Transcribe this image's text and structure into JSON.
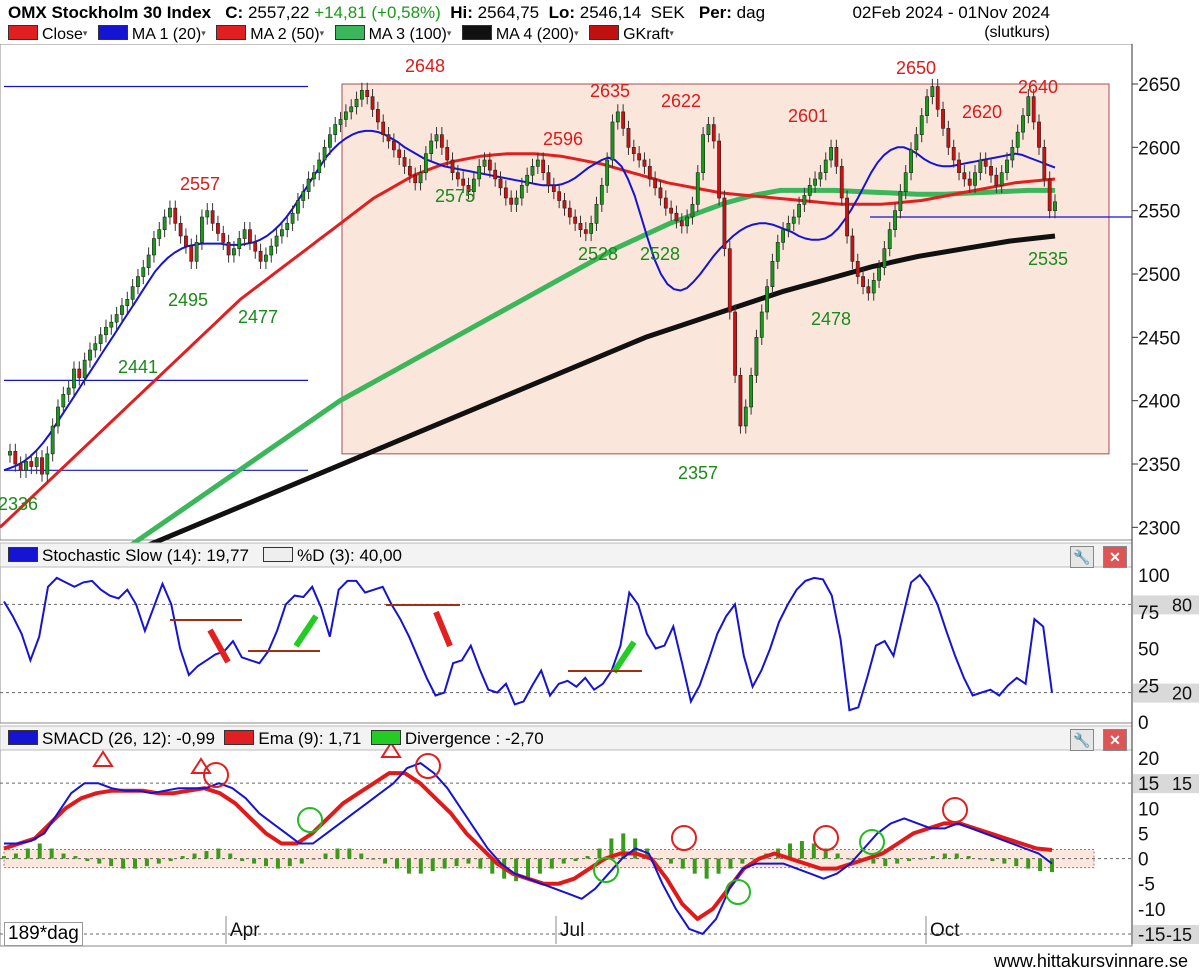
{
  "header": {
    "name": "OMX Stockholm 30 Index",
    "close_label": "C:",
    "close_value": "2557,22",
    "change": "+14,81 (+0,58%)",
    "hi_label": "Hi:",
    "hi_value": "2564,75",
    "lo_label": "Lo:",
    "lo_value": "2546,14",
    "currency": "SEK",
    "period_label": "Per:",
    "period_value": "dag",
    "date_range": "02Feb 2024 - 01Nov 2024",
    "price_mode": "(slutkurs)"
  },
  "legend": [
    {
      "label": "Close",
      "color": "#e02020"
    },
    {
      "label": "MA 1 (20)",
      "color": "#1414d2"
    },
    {
      "label": "MA 2 (50)",
      "color": "#e02020"
    },
    {
      "label": "MA 3 (100)",
      "color": "#3cb65a"
    },
    {
      "label": "MA 4 (200)",
      "color": "#111111"
    },
    {
      "label": "GKraft",
      "color": "#c01010"
    }
  ],
  "stoch_header": {
    "k": "Stochastic Slow (14): 19,77",
    "d": "%D (3): 40,00"
  },
  "macd_header": {
    "macd": "SMACD (26, 12): -0,99",
    "ema": "Ema (9): 1,71",
    "div": "Divergence : -2,70"
  },
  "footer": {
    "website": "www.hittakursvinnare.se",
    "interval": "189*dag"
  },
  "colors": {
    "up": "#1a9a1a",
    "down": "#d01010",
    "ma20": "#1414d2",
    "ma50": "#e02020",
    "ma100": "#3cb65a",
    "ma200": "#111111",
    "box": "#fbe6dc"
  },
  "chart_data": [
    {
      "type": "candlestick",
      "title": "OMX Stockholm 30 Index",
      "x_labels": [
        "Apr",
        "Jul",
        "Oct"
      ],
      "y_ticks": [
        2300,
        2350,
        2400,
        2450,
        2500,
        2550,
        2600,
        2650
      ],
      "ylim": [
        2290,
        2680
      ],
      "grid": false,
      "close": [
        2360,
        2350,
        2345,
        2352,
        2348,
        2355,
        2342,
        2358,
        2380,
        2395,
        2405,
        2410,
        2425,
        2418,
        2432,
        2440,
        2445,
        2452,
        2458,
        2462,
        2468,
        2475,
        2480,
        2490,
        2498,
        2505,
        2515,
        2528,
        2535,
        2545,
        2552,
        2540,
        2530,
        2522,
        2510,
        2525,
        2545,
        2550,
        2540,
        2532,
        2525,
        2515,
        2520,
        2528,
        2535,
        2525,
        2518,
        2510,
        2515,
        2522,
        2530,
        2535,
        2540,
        2548,
        2558,
        2565,
        2575,
        2580,
        2590,
        2600,
        2610,
        2618,
        2622,
        2628,
        2632,
        2638,
        2645,
        2640,
        2630,
        2620,
        2610,
        2605,
        2598,
        2592,
        2585,
        2578,
        2572,
        2580,
        2595,
        2605,
        2610,
        2600,
        2590,
        2580,
        2575,
        2570,
        2565,
        2575,
        2585,
        2590,
        2582,
        2575,
        2568,
        2560,
        2555,
        2560,
        2570,
        2578,
        2585,
        2590,
        2580,
        2570,
        2565,
        2558,
        2552,
        2545,
        2540,
        2535,
        2532,
        2540,
        2555,
        2570,
        2590,
        2620,
        2628,
        2615,
        2600,
        2595,
        2590,
        2585,
        2575,
        2568,
        2560,
        2552,
        2548,
        2542,
        2538,
        2545,
        2555,
        2580,
        2610,
        2618,
        2605,
        2560,
        2520,
        2470,
        2420,
        2380,
        2395,
        2420,
        2450,
        2470,
        2490,
        2510,
        2525,
        2535,
        2540,
        2545,
        2555,
        2562,
        2570,
        2575,
        2580,
        2590,
        2600,
        2585,
        2560,
        2530,
        2510,
        2498,
        2490,
        2485,
        2495,
        2505,
        2520,
        2535,
        2550,
        2565,
        2580,
        2598,
        2610,
        2625,
        2640,
        2648,
        2630,
        2615,
        2600,
        2590,
        2580,
        2575,
        2570,
        2580,
        2590,
        2585,
        2578,
        2570,
        2580,
        2590,
        2600,
        2612,
        2625,
        2640,
        2620,
        2600,
        2575,
        2550,
        2557
      ],
      "annotations_high": [
        2557,
        2648,
        2635,
        2622,
        2596,
        2601,
        2650,
        2620,
        2640
      ],
      "annotations_low": [
        2336,
        2441,
        2495,
        2477,
        2575,
        2528,
        2528,
        2357,
        2478,
        2535
      ],
      "series": [
        {
          "name": "MA 1 (20)",
          "values": [
            2345,
            2347,
            2349,
            2352,
            2356,
            2361,
            2367,
            2374,
            2382,
            2390,
            2398,
            2406,
            2414,
            2422,
            2430,
            2438,
            2446,
            2454,
            2462,
            2470,
            2478,
            2486,
            2494,
            2502,
            2508,
            2513,
            2517,
            2520,
            2522,
            2523,
            2524,
            2524,
            2524,
            2524,
            2523,
            2523,
            2523,
            2524,
            2525,
            2527,
            2530,
            2534,
            2539,
            2545,
            2552,
            2560,
            2568,
            2576,
            2584,
            2592,
            2598,
            2603,
            2607,
            2610,
            2612,
            2613,
            2613,
            2612,
            2610,
            2607,
            2604,
            2600,
            2597,
            2594,
            2591,
            2589,
            2587,
            2585,
            2584,
            2583,
            2582,
            2581,
            2580,
            2579,
            2578,
            2577,
            2576,
            2575,
            2574,
            2573,
            2572,
            2571,
            2570,
            2570,
            2570,
            2571,
            2573,
            2576,
            2580,
            2584,
            2587,
            2590,
            2592,
            2590,
            2585,
            2575,
            2562,
            2545,
            2528,
            2512,
            2500,
            2492,
            2488,
            2487,
            2489,
            2494,
            2500,
            2507,
            2514,
            2520,
            2525,
            2530,
            2534,
            2537,
            2539,
            2540,
            2540,
            2539,
            2537,
            2535,
            2533,
            2530,
            2528,
            2527,
            2527,
            2528,
            2531,
            2536,
            2543,
            2551,
            2560,
            2570,
            2580,
            2588,
            2594,
            2598,
            2600,
            2600,
            2598,
            2595,
            2591,
            2588,
            2586,
            2585,
            2585,
            2586,
            2587,
            2588,
            2589,
            2590,
            2591,
            2592,
            2593,
            2594,
            2595,
            2594,
            2592,
            2590,
            2588,
            2586,
            2584
          ]
        },
        {
          "name": "MA 2 (50)",
          "values": [
            2300,
            2310,
            2320,
            2330,
            2340,
            2350,
            2360,
            2370,
            2380,
            2390,
            2400,
            2410,
            2420,
            2430,
            2440,
            2450,
            2460,
            2470,
            2480,
            2488,
            2496,
            2504,
            2512,
            2520,
            2528,
            2536,
            2544,
            2552,
            2560,
            2566,
            2572,
            2578,
            2582,
            2586,
            2589,
            2591,
            2593,
            2594,
            2595,
            2595,
            2595,
            2594,
            2593,
            2591,
            2589,
            2587,
            2584,
            2581,
            2578,
            2575,
            2572,
            2570,
            2568,
            2566,
            2564,
            2563,
            2562,
            2561,
            2560,
            2559,
            2558,
            2557,
            2556,
            2555,
            2555,
            2555,
            2555,
            2556,
            2557,
            2558,
            2560,
            2562,
            2564,
            2566,
            2568,
            2570,
            2572,
            2573,
            2574,
            2575
          ]
        },
        {
          "name": "MA 3 (100)",
          "values": [
            2280,
            2295,
            2310,
            2325,
            2340,
            2355,
            2370,
            2385,
            2400,
            2412,
            2424,
            2436,
            2448,
            2460,
            2472,
            2484,
            2496,
            2508,
            2520,
            2530,
            2540,
            2548,
            2556,
            2562,
            2566,
            2566,
            2566,
            2565,
            2564,
            2563,
            2563,
            2564,
            2565,
            2566,
            2566
          ]
        },
        {
          "name": "MA 4 (200)",
          "values": [
            2270,
            2285,
            2300,
            2315,
            2330,
            2345,
            2360,
            2375,
            2390,
            2405,
            2420,
            2435,
            2450,
            2462,
            2474,
            2486,
            2496,
            2506,
            2514,
            2520,
            2526,
            2530
          ]
        }
      ]
    },
    {
      "type": "line",
      "title": "Stochastic Slow (14)",
      "y_ticks": [
        0,
        25,
        50,
        75,
        100
      ],
      "ylim": [
        0,
        100
      ],
      "levels": [
        20,
        80
      ],
      "series": [
        {
          "name": "Stochastic Slow (14)",
          "values": [
            82,
            72,
            60,
            42,
            58,
            92,
            98,
            95,
            92,
            95,
            96,
            90,
            86,
            84,
            90,
            80,
            62,
            78,
            94,
            80,
            50,
            32,
            38,
            42,
            46,
            48,
            55,
            44,
            42,
            40,
            48,
            62,
            80,
            86,
            85,
            92,
            78,
            58,
            90,
            96,
            96,
            88,
            90,
            92,
            80,
            70,
            58,
            44,
            30,
            18,
            20,
            40,
            42,
            52,
            36,
            22,
            20,
            26,
            12,
            14,
            25,
            35,
            18,
            26,
            28,
            24,
            30,
            22,
            26,
            35,
            52,
            88,
            80,
            60,
            50,
            52,
            65,
            40,
            14,
            25,
            42,
            60,
            72,
            80,
            45,
            24,
            35,
            50,
            68,
            80,
            90,
            96,
            98,
            97,
            86,
            56,
            8,
            10,
            30,
            52,
            55,
            45,
            70,
            95,
            100,
            92,
            80,
            62,
            45,
            30,
            18,
            20,
            22,
            18,
            25,
            30,
            26,
            70,
            65,
            20
          ]
        },
        {
          "name": "%D (3)",
          "values": [
            40
          ]
        }
      ]
    },
    {
      "type": "bar",
      "title": "SMACD (26, 12)",
      "y_ticks": [
        -15,
        -10,
        -5.0,
        0,
        5.0,
        10,
        15,
        20
      ],
      "ylim": [
        -17,
        22
      ],
      "levels": [
        15,
        0,
        -15
      ],
      "series": [
        {
          "name": "SMACD (26, 12)",
          "values": [
            3,
            3,
            3.5,
            5,
            9,
            13,
            15,
            15,
            14,
            13.5,
            13.5,
            13,
            13.5,
            14,
            14,
            14,
            15,
            14,
            12,
            9,
            7,
            5,
            3,
            3,
            5,
            7,
            9,
            11,
            13,
            15,
            18,
            19,
            17,
            14,
            10,
            6,
            2,
            -1,
            -3,
            -4,
            -5,
            -6,
            -7,
            -8,
            -6,
            -3,
            0,
            2,
            1,
            -5,
            -10,
            -14,
            -15,
            -12,
            -6,
            -2,
            -1,
            -1,
            -1,
            -2,
            -3,
            -4,
            -3,
            -1,
            2,
            5,
            7,
            8,
            7,
            6,
            6,
            7,
            6,
            5,
            4,
            3,
            2,
            1,
            -1
          ]
        },
        {
          "name": "Ema (9)",
          "values": [
            2,
            3,
            4,
            7,
            10,
            12,
            13,
            13.5,
            13.5,
            13.5,
            13,
            13,
            13.5,
            14,
            13,
            11,
            8,
            5,
            3,
            3,
            5,
            8,
            11,
            13,
            15,
            17,
            17,
            15,
            12,
            9,
            5,
            2,
            -1,
            -3,
            -4,
            -5,
            -5,
            -4,
            -2,
            0,
            1,
            1,
            0,
            -4,
            -9,
            -12,
            -10,
            -6,
            -2,
            0,
            1,
            0,
            -1,
            -2,
            -2,
            -1,
            0,
            1,
            3,
            5,
            6,
            7,
            7,
            6,
            5,
            4,
            3,
            2,
            1.7
          ]
        },
        {
          "name": "Divergence",
          "values": [
            0.5,
            1,
            2,
            3,
            2,
            1,
            0.5,
            -0.5,
            -1,
            -1.5,
            -2,
            -2,
            -1.5,
            -1,
            -0.5,
            0.5,
            1,
            1.5,
            2,
            1,
            -0.5,
            -1,
            -1.5,
            -2,
            -1.5,
            -1,
            0,
            1,
            2,
            2,
            1,
            0,
            -1,
            -2,
            -3,
            -3,
            -2.5,
            -2,
            -1.5,
            -1,
            -2,
            -3,
            -4,
            -4.5,
            -4,
            -3,
            -2,
            -1,
            -0.5,
            0.5,
            2,
            4,
            5,
            4,
            2,
            0,
            -1,
            -2,
            -3,
            -4,
            -3,
            -2,
            -1,
            0,
            1,
            2,
            3,
            3.5,
            3,
            2,
            1,
            0,
            -0.5,
            -1,
            -1.5,
            -1,
            -0.5,
            0,
            0.5,
            1,
            1,
            0.5,
            0,
            -0.5,
            -1,
            -1.5,
            -2,
            -2.5,
            -2.7
          ]
        }
      ]
    }
  ]
}
